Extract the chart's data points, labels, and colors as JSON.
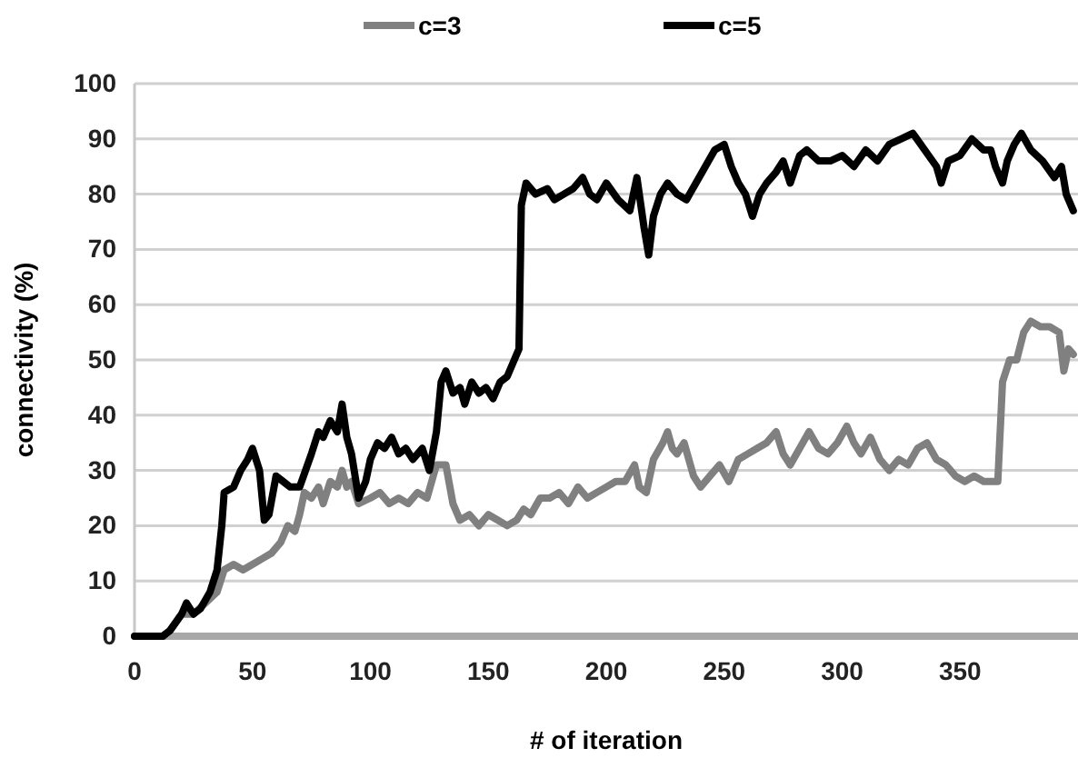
{
  "chart_data": {
    "type": "line",
    "xlabel": "# of iteration",
    "ylabel": "connectivity (%)",
    "xlim": [
      0,
      400
    ],
    "xticks": [
      0,
      50,
      100,
      150,
      200,
      250,
      300,
      350
    ],
    "ylim": [
      0,
      100
    ],
    "yticks": [
      0,
      10,
      20,
      30,
      40,
      50,
      60,
      70,
      80,
      90,
      100
    ],
    "grid": "y",
    "legend": "top",
    "marker": "none",
    "line_style": "solid",
    "series": [
      {
        "name": "c=3",
        "color": "#808080",
        "x": [
          0,
          12,
          15,
          20,
          25,
          30,
          35,
          38,
          42,
          46,
          50,
          54,
          58,
          62,
          65,
          68,
          70,
          72,
          75,
          78,
          80,
          83,
          86,
          88,
          90,
          92,
          95,
          100,
          104,
          108,
          112,
          116,
          120,
          124,
          128,
          132,
          135,
          138,
          142,
          146,
          150,
          154,
          158,
          162,
          165,
          168,
          172,
          176,
          180,
          184,
          188,
          192,
          196,
          200,
          204,
          208,
          212,
          214,
          217,
          220,
          224,
          226,
          228,
          230,
          233,
          237,
          240,
          244,
          248,
          252,
          256,
          260,
          264,
          268,
          272,
          275,
          278,
          282,
          286,
          290,
          294,
          298,
          302,
          305,
          308,
          312,
          316,
          320,
          324,
          328,
          332,
          336,
          340,
          344,
          348,
          352,
          356,
          360,
          364,
          366,
          368,
          371,
          374,
          377,
          380,
          384,
          388,
          392,
          394,
          396,
          398
        ],
        "values": [
          0,
          0,
          1,
          4,
          4,
          6,
          8,
          12,
          13,
          12,
          13,
          14,
          15,
          17,
          20,
          19,
          22,
          26,
          25,
          27,
          24,
          28,
          27,
          30,
          27,
          28,
          24,
          25,
          26,
          24,
          25,
          24,
          26,
          25,
          31,
          31,
          24,
          21,
          22,
          20,
          22,
          21,
          20,
          21,
          23,
          22,
          25,
          25,
          26,
          24,
          27,
          25,
          26,
          27,
          28,
          28,
          31,
          27,
          26,
          32,
          35,
          37,
          34,
          33,
          35,
          29,
          27,
          29,
          31,
          28,
          32,
          33,
          34,
          35,
          37,
          33,
          31,
          34,
          37,
          34,
          33,
          35,
          38,
          35,
          33,
          36,
          32,
          30,
          32,
          31,
          34,
          35,
          32,
          31,
          29,
          28,
          29,
          28,
          28,
          28,
          46,
          50,
          50,
          55,
          57,
          56,
          56,
          55,
          48,
          52,
          51
        ]
      },
      {
        "name": "c=5",
        "color": "#000000",
        "x": [
          0,
          12,
          15,
          20,
          22,
          25,
          28,
          32,
          35,
          37,
          38,
          42,
          45,
          48,
          50,
          53,
          55,
          57,
          60,
          63,
          66,
          70,
          75,
          78,
          80,
          83,
          86,
          88,
          90,
          92,
          95,
          98,
          100,
          103,
          106,
          109,
          112,
          115,
          118,
          122,
          125,
          128,
          130,
          132,
          135,
          138,
          140,
          143,
          146,
          149,
          152,
          155,
          158,
          161,
          163,
          164,
          166,
          170,
          175,
          178,
          182,
          186,
          190,
          193,
          196,
          200,
          205,
          210,
          213,
          216,
          218,
          220,
          223,
          226,
          230,
          234,
          238,
          242,
          246,
          250,
          253,
          256,
          259,
          262,
          265,
          268,
          272,
          275,
          278,
          282,
          285,
          290,
          295,
          300,
          305,
          310,
          315,
          320,
          325,
          330,
          335,
          340,
          342,
          345,
          350,
          355,
          360,
          363,
          365,
          368,
          370,
          373,
          376,
          380,
          385,
          390,
          393,
          395,
          398
        ],
        "values": [
          0,
          0,
          1,
          4,
          6,
          4,
          5,
          8,
          12,
          20,
          26,
          27,
          30,
          32,
          34,
          30,
          21,
          22,
          29,
          28,
          27,
          27,
          33,
          37,
          36,
          39,
          37,
          42,
          36,
          33,
          25,
          28,
          32,
          35,
          34,
          36,
          33,
          34,
          32,
          34,
          30,
          37,
          46,
          48,
          44,
          45,
          42,
          46,
          44,
          45,
          43,
          46,
          47,
          50,
          52,
          78,
          82,
          80,
          81,
          79,
          80,
          81,
          83,
          80,
          79,
          82,
          79,
          77,
          83,
          74,
          69,
          76,
          80,
          82,
          80,
          79,
          82,
          85,
          88,
          89,
          85,
          82,
          80,
          76,
          80,
          82,
          84,
          86,
          82,
          87,
          88,
          86,
          86,
          87,
          85,
          88,
          86,
          89,
          90,
          91,
          88,
          85,
          82,
          86,
          87,
          90,
          88,
          88,
          85,
          82,
          86,
          89,
          91,
          88,
          86,
          83,
          85,
          80,
          77
        ]
      }
    ]
  }
}
